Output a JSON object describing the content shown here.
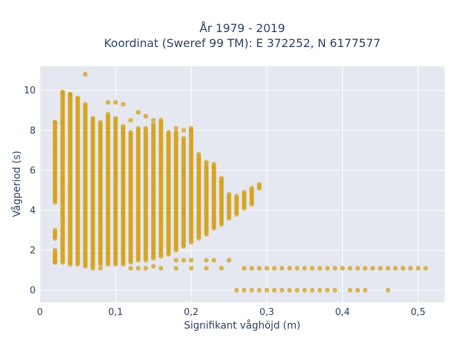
{
  "chart_data": {
    "type": "scatter",
    "title_line1": "År 1979 - 2019",
    "title_line2": "Koordinat (Sweref 99 TM): E 372252, N 6177577",
    "xlabel": "Signifikant våghöjd (m)",
    "ylabel": "Vågperiod (s)",
    "xlim": [
      0,
      0.535
    ],
    "ylim": [
      -0.6,
      11.2
    ],
    "x_ticks": [
      0,
      0.1,
      0.2,
      0.3,
      0.4,
      0.5
    ],
    "x_tick_labels": [
      "0",
      "0,1",
      "0,2",
      "0,3",
      "0,4",
      "0,5"
    ],
    "y_ticks": [
      0,
      2,
      4,
      6,
      8,
      10
    ],
    "y_tick_labels": [
      "0",
      "2",
      "4",
      "6",
      "8",
      "10"
    ],
    "grid": true,
    "legend": false,
    "marker_color": "#d4a017",
    "plot_background": "#e5e8f0",
    "grid_color": "#ffffff",
    "columns": [
      {
        "x": 0.02,
        "ranges": [
          [
            1.4,
            1.9
          ],
          [
            2.6,
            3.0
          ],
          [
            4.4,
            8.4
          ]
        ]
      },
      {
        "x": 0.03,
        "ranges": [
          [
            1.4,
            5.6
          ],
          [
            5.6,
            9.9
          ]
        ]
      },
      {
        "x": 0.04,
        "ranges": [
          [
            1.3,
            9.8
          ]
        ]
      },
      {
        "x": 0.05,
        "ranges": [
          [
            1.3,
            9.6
          ]
        ]
      },
      {
        "x": 0.06,
        "ranges": [
          [
            1.2,
            9.3
          ]
        ]
      },
      {
        "x": 0.07,
        "ranges": [
          [
            1.1,
            8.6
          ]
        ]
      },
      {
        "x": 0.08,
        "ranges": [
          [
            1.3,
            8.4
          ]
        ]
      },
      {
        "x": 0.09,
        "ranges": [
          [
            1.3,
            8.8
          ]
        ]
      },
      {
        "x": 0.1,
        "ranges": [
          [
            1.3,
            8.6
          ]
        ]
      },
      {
        "x": 0.11,
        "ranges": [
          [
            1.3,
            8.2
          ]
        ]
      },
      {
        "x": 0.12,
        "ranges": [
          [
            1.4,
            7.9
          ]
        ]
      },
      {
        "x": 0.13,
        "ranges": [
          [
            1.5,
            8.1
          ]
        ]
      },
      {
        "x": 0.14,
        "ranges": [
          [
            1.5,
            8.1
          ]
        ]
      },
      {
        "x": 0.15,
        "ranges": [
          [
            1.6,
            8.3
          ]
        ]
      },
      {
        "x": 0.16,
        "ranges": [
          [
            1.7,
            8.4
          ]
        ]
      },
      {
        "x": 0.17,
        "ranges": [
          [
            1.8,
            7.9
          ]
        ]
      },
      {
        "x": 0.18,
        "ranges": [
          [
            2.0,
            7.9
          ]
        ]
      },
      {
        "x": 0.19,
        "ranges": [
          [
            2.2,
            7.6
          ]
        ]
      },
      {
        "x": 0.2,
        "ranges": [
          [
            2.4,
            8.1
          ]
        ]
      },
      {
        "x": 0.21,
        "ranges": [
          [
            2.6,
            6.8
          ]
        ]
      },
      {
        "x": 0.22,
        "ranges": [
          [
            2.8,
            6.4
          ]
        ]
      },
      {
        "x": 0.23,
        "ranges": [
          [
            3.1,
            6.3
          ]
        ]
      },
      {
        "x": 0.24,
        "ranges": [
          [
            3.3,
            5.6
          ]
        ]
      },
      {
        "x": 0.25,
        "ranges": [
          [
            3.6,
            4.8
          ]
        ]
      },
      {
        "x": 0.26,
        "ranges": [
          [
            3.8,
            4.7
          ]
        ]
      },
      {
        "x": 0.27,
        "ranges": [
          [
            4.1,
            4.9
          ]
        ]
      },
      {
        "x": 0.28,
        "ranges": [
          [
            4.3,
            5.1
          ]
        ]
      },
      {
        "x": 0.29,
        "ranges": [
          [
            5.1,
            5.3
          ]
        ]
      }
    ],
    "points": [
      [
        0.06,
        10.8
      ],
      [
        0.03,
        9.9
      ],
      [
        0.04,
        9.8
      ],
      [
        0.05,
        9.6
      ],
      [
        0.09,
        9.4
      ],
      [
        0.1,
        9.4
      ],
      [
        0.11,
        9.3
      ],
      [
        0.13,
        8.9
      ],
      [
        0.14,
        8.7
      ],
      [
        0.12,
        8.5
      ],
      [
        0.15,
        8.5
      ],
      [
        0.16,
        8.5
      ],
      [
        0.18,
        8.1
      ],
      [
        0.19,
        8.0
      ],
      [
        0.2,
        8.0
      ],
      [
        0.02,
        8.4
      ],
      [
        0.02,
        1.4
      ],
      [
        0.02,
        1.5
      ],
      [
        0.02,
        1.7
      ],
      [
        0.02,
        2.0
      ],
      [
        0.08,
        1.1
      ],
      [
        0.12,
        1.1
      ],
      [
        0.13,
        1.1
      ],
      [
        0.14,
        1.1
      ],
      [
        0.15,
        1.2
      ],
      [
        0.16,
        1.1
      ],
      [
        0.18,
        1.1
      ],
      [
        0.2,
        1.1
      ],
      [
        0.22,
        1.1
      ],
      [
        0.24,
        1.1
      ],
      [
        0.18,
        1.5
      ],
      [
        0.19,
        1.5
      ],
      [
        0.2,
        1.5
      ],
      [
        0.22,
        1.5
      ],
      [
        0.23,
        1.5
      ],
      [
        0.25,
        1.5
      ],
      [
        0.27,
        1.1
      ],
      [
        0.28,
        1.1
      ],
      [
        0.29,
        1.1
      ],
      [
        0.3,
        1.1
      ],
      [
        0.31,
        1.1
      ],
      [
        0.32,
        1.1
      ],
      [
        0.33,
        1.1
      ],
      [
        0.34,
        1.1
      ],
      [
        0.35,
        1.1
      ],
      [
        0.36,
        1.1
      ],
      [
        0.37,
        1.1
      ],
      [
        0.38,
        1.1
      ],
      [
        0.39,
        1.1
      ],
      [
        0.4,
        1.1
      ],
      [
        0.41,
        1.1
      ],
      [
        0.42,
        1.1
      ],
      [
        0.43,
        1.1
      ],
      [
        0.44,
        1.1
      ],
      [
        0.45,
        1.1
      ],
      [
        0.46,
        1.1
      ],
      [
        0.47,
        1.1
      ],
      [
        0.48,
        1.1
      ],
      [
        0.49,
        1.1
      ],
      [
        0.5,
        1.1
      ],
      [
        0.51,
        1.1
      ],
      [
        0.26,
        0
      ],
      [
        0.27,
        0
      ],
      [
        0.28,
        0
      ],
      [
        0.29,
        0
      ],
      [
        0.3,
        0
      ],
      [
        0.31,
        0
      ],
      [
        0.32,
        0
      ],
      [
        0.33,
        0
      ],
      [
        0.34,
        0
      ],
      [
        0.35,
        0
      ],
      [
        0.36,
        0
      ],
      [
        0.37,
        0
      ],
      [
        0.38,
        0
      ],
      [
        0.39,
        0
      ],
      [
        0.41,
        0
      ],
      [
        0.42,
        0
      ],
      [
        0.43,
        0
      ],
      [
        0.46,
        0
      ]
    ]
  }
}
